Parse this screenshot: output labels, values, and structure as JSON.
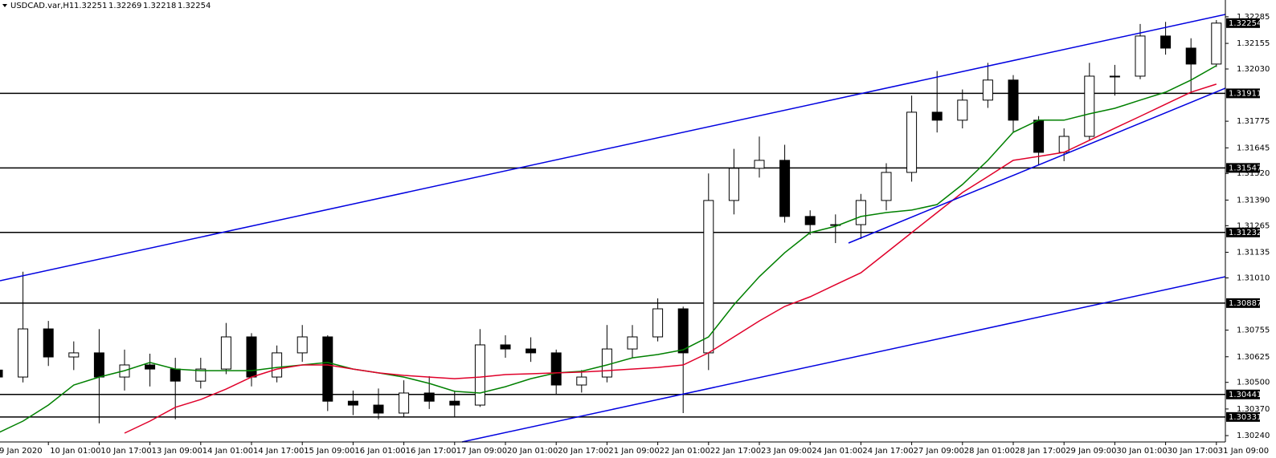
{
  "chart_data": {
    "type": "candlestick",
    "symbol": "USDCAD.var,H1",
    "last_bar": [
      1.32251,
      1.32269,
      1.32218,
      1.32254
    ],
    "categories": [
      "9 Jan 2020",
      null,
      "10 Jan 01:00",
      null,
      "10 Jan 17:00",
      null,
      "13 Jan 09:00",
      null,
      "14 Jan 01:00",
      null,
      "14 Jan 17:00",
      null,
      "15 Jan 09:00",
      null,
      "16 Jan 01:00",
      null,
      "16 Jan 17:00",
      null,
      "17 Jan 09:00",
      null,
      "20 Jan 01:00",
      null,
      "20 Jan 17:00",
      null,
      "21 Jan 09:00",
      null,
      "22 Jan 01:00",
      null,
      "22 Jan 17:00",
      null,
      "23 Jan 09:00",
      null,
      "24 Jan 01:00",
      null,
      "24 Jan 17:00",
      null,
      "27 Jan 09:00",
      null,
      "28 Jan 01:00",
      null,
      "28 Jan 17:00",
      null,
      "29 Jan 09:00",
      null,
      "30 Jan 01:00",
      null,
      "30 Jan 17:00",
      null,
      "31 Jan 09:00"
    ],
    "open": [
      1.3056,
      1.30526,
      1.30761,
      1.30624,
      1.30644,
      1.30526,
      1.30585,
      1.30565,
      1.30506,
      1.30565,
      1.30722,
      1.30526,
      1.30644,
      1.30722,
      1.30408,
      1.30389,
      1.3035,
      1.30448,
      1.30408,
      1.30389,
      1.30683,
      1.30663,
      1.30644,
      1.30487,
      1.30526,
      1.30663,
      1.30722,
      1.30859,
      1.30644,
      1.31388,
      1.31545,
      1.31584,
      1.3131,
      1.3127,
      1.3127,
      1.31388,
      1.31525,
      1.31819,
      1.3178,
      1.31878,
      1.31976,
      1.3178,
      1.31623,
      1.31701,
      1.31995,
      1.31995,
      1.32191,
      1.32132,
      1.32054
    ],
    "high": [
      1.306,
      1.3104,
      1.308,
      1.307,
      1.3076,
      1.3066,
      1.3064,
      1.3062,
      1.3062,
      1.3079,
      1.3074,
      1.3068,
      1.3078,
      1.3073,
      1.3046,
      1.3047,
      1.3051,
      1.3053,
      1.3046,
      1.3076,
      1.3073,
      1.3072,
      1.3066,
      1.3056,
      1.3078,
      1.3078,
      1.3091,
      1.3087,
      1.3152,
      1.3164,
      1.317,
      1.3166,
      1.3134,
      1.3132,
      1.3142,
      1.3157,
      1.319,
      1.3202,
      1.3193,
      1.3206,
      1.32,
      1.318,
      1.3174,
      1.3206,
      1.3205,
      1.3225,
      1.3226,
      1.3218,
      1.32269
    ],
    "low": [
      1.3048,
      1.305,
      1.3058,
      1.3056,
      1.303,
      1.3046,
      1.3048,
      1.3032,
      1.3047,
      1.3054,
      1.3048,
      1.305,
      1.306,
      1.3036,
      1.3034,
      1.3032,
      1.3033,
      1.3037,
      1.3033,
      1.3038,
      1.3062,
      1.306,
      1.3044,
      1.3045,
      1.305,
      1.3062,
      1.307,
      1.3035,
      1.3056,
      1.3132,
      1.315,
      1.3128,
      1.3122,
      1.3118,
      1.312,
      1.3134,
      1.3148,
      1.3172,
      1.3174,
      1.3184,
      1.3172,
      1.3156,
      1.3158,
      1.3168,
      1.319,
      1.3198,
      1.321,
      1.3191,
      1.3204
    ],
    "close": [
      1.30526,
      1.30761,
      1.30624,
      1.30644,
      1.30526,
      1.30585,
      1.30565,
      1.30506,
      1.30565,
      1.30722,
      1.30526,
      1.30644,
      1.30722,
      1.30408,
      1.30389,
      1.3035,
      1.30448,
      1.30408,
      1.30389,
      1.30683,
      1.30663,
      1.30644,
      1.30487,
      1.30526,
      1.30663,
      1.30722,
      1.30859,
      1.30644,
      1.31388,
      1.31545,
      1.31584,
      1.3131,
      1.3127,
      1.3127,
      1.31388,
      1.31525,
      1.31819,
      1.3178,
      1.31878,
      1.31976,
      1.3178,
      1.31623,
      1.31701,
      1.31995,
      1.31995,
      1.32191,
      1.32132,
      1.32054,
      1.32254
    ],
    "series": [
      {
        "color": "#008000",
        "values": [
          1.30252,
          1.30311,
          1.30389,
          1.30487,
          1.30526,
          1.30557,
          1.30597,
          1.30565,
          1.30557,
          1.30557,
          1.30557,
          1.30573,
          1.30585,
          1.30597,
          1.30565,
          1.30546,
          1.30526,
          1.30495,
          1.30456,
          1.30448,
          1.30479,
          1.30518,
          1.30546,
          1.30554,
          1.30585,
          1.3062,
          1.30636,
          1.30659,
          1.30722,
          1.30879,
          1.31016,
          1.31133,
          1.31231,
          1.31262,
          1.3131,
          1.31329,
          1.31341,
          1.31368,
          1.31466,
          1.31584,
          1.31721,
          1.3178,
          1.3178,
          1.31811,
          1.31838,
          1.31878,
          1.31917,
          1.31976,
          1.32046
        ]
      },
      {
        "color": "#e0002a",
        "values": [
          null,
          null,
          null,
          null,
          null,
          1.30252,
          1.30311,
          1.30378,
          1.30416,
          1.30467,
          1.30526,
          1.30565,
          1.30585,
          1.30585,
          1.30565,
          1.30546,
          1.30534,
          1.30526,
          1.30518,
          1.30526,
          1.30538,
          1.30542,
          1.30546,
          1.3055,
          1.30557,
          1.30565,
          1.30573,
          1.30585,
          1.30644,
          1.30722,
          1.308,
          1.30871,
          1.30918,
          1.30977,
          1.31035,
          1.31133,
          1.31231,
          1.31329,
          1.31427,
          1.31505,
          1.31584,
          1.31603,
          1.31623,
          1.31682,
          1.31741,
          1.31799,
          1.31858,
          1.31917,
          1.31956
        ]
      }
    ],
    "levels": [
      1.31911,
      1.31547,
      1.31232,
      1.30887,
      1.30441,
      1.30331
    ],
    "bid": 1.32254,
    "ylim": [
      1.30209,
      1.32312
    ],
    "yticks": [
      1.32285,
      1.32155,
      {
        "value": 1.3203,
        "label": "1.32030"
      },
      1.31775,
      1.31645,
      {
        "value": 1.3152,
        "label": "1.31520"
      },
      {
        "value": 1.3139,
        "label": "1.31390"
      },
      1.31265,
      1.31135,
      {
        "value": 1.3101,
        "label": "1.31010"
      },
      1.30755,
      1.30625,
      {
        "value": 1.305,
        "label": "1.30500"
      },
      {
        "value": 1.3037,
        "label": "1.30370"
      },
      {
        "value": 1.3024,
        "label": "1.30240"
      }
    ],
    "up_color": "#ffffff",
    "down_color": "#000000",
    "level_color": "#000000",
    "grid": false
  }
}
